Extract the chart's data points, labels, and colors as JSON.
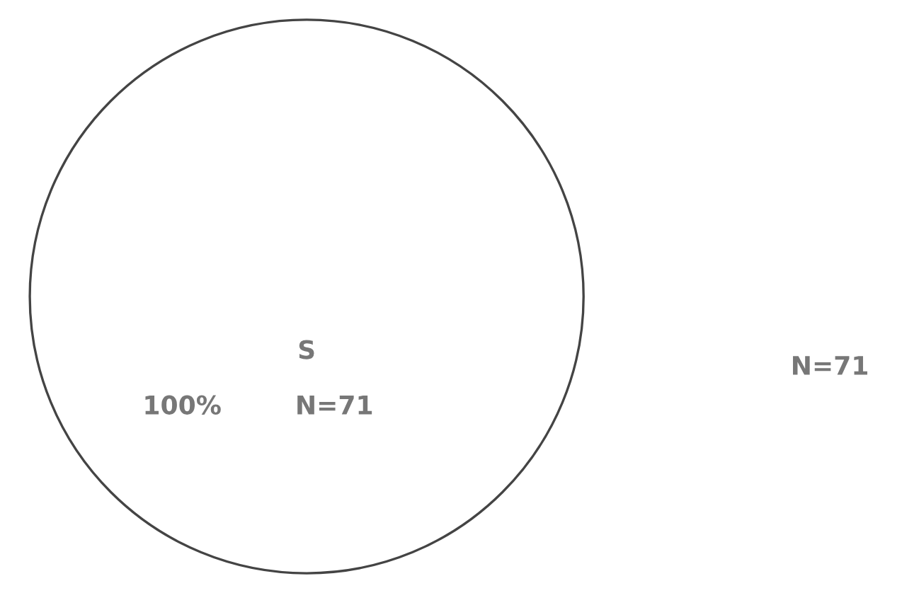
{
  "chart_data": {
    "type": "pie",
    "categories": [
      "S"
    ],
    "values": [
      100
    ],
    "colors": [
      "#ffffff"
    ],
    "value_labels": [
      "100%"
    ],
    "annotations": [
      "N=71",
      "N=71"
    ]
  }
}
